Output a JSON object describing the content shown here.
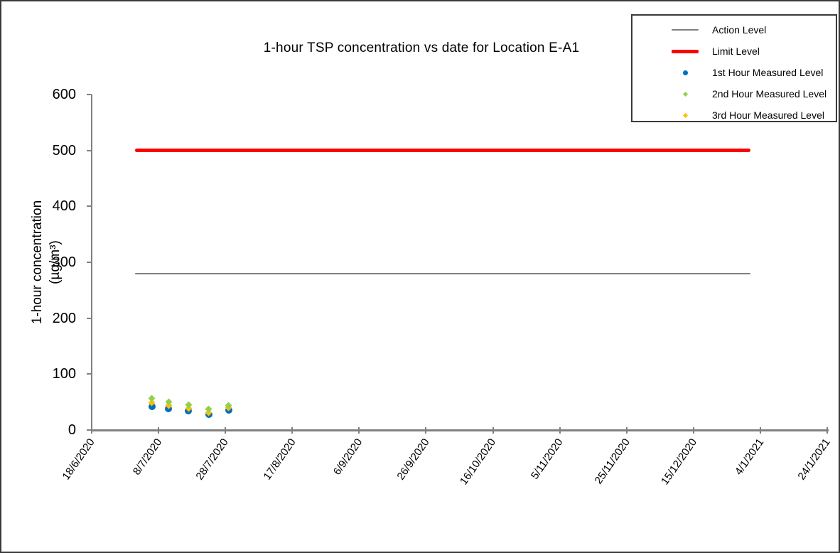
{
  "chart_data": {
    "type": "scatter",
    "title": "1-hour TSP concentration vs date for Location E-A1",
    "ylabel_line1": "1-hour concentration",
    "ylabel_line2": "(µg/m³)",
    "ylim": [
      0,
      600
    ],
    "yticks": [
      0,
      100,
      200,
      300,
      400,
      500,
      600
    ],
    "x_range": [
      "18/6/2020",
      "24/1/2021"
    ],
    "x_tick_labels": [
      "18/6/2020",
      "8/7/2020",
      "28/7/2020",
      "17/8/2020",
      "6/9/2020",
      "26/9/2020",
      "16/10/2020",
      "5/11/2020",
      "25/11/2020",
      "15/12/2020",
      "4/1/2021",
      "24/1/2021"
    ],
    "grid": "off",
    "legend_position": "top-right",
    "ref_lines": [
      {
        "name": "Action Level",
        "value": 280,
        "start": "1/7/2020",
        "end": "1/1/2021",
        "color": "#808080",
        "thickness": 2
      },
      {
        "name": "Limit Level",
        "value": 500,
        "start": "1/7/2020",
        "end": "1/1/2021",
        "color": "#FF0000",
        "thickness": 5
      }
    ],
    "series": [
      {
        "name": "1st Hour Measured Level",
        "marker": "circle",
        "color": "#0070C0",
        "points": [
          {
            "date": "6/7/2020",
            "value": 42
          },
          {
            "date": "11/7/2020",
            "value": 38
          },
          {
            "date": "17/7/2020",
            "value": 34
          },
          {
            "date": "23/7/2020",
            "value": 28
          },
          {
            "date": "29/7/2020",
            "value": 35
          }
        ]
      },
      {
        "name": "2nd Hour Measured Level",
        "marker": "diamond",
        "color": "#92D050",
        "points": [
          {
            "date": "6/7/2020",
            "value": 56
          },
          {
            "date": "11/7/2020",
            "value": 50
          },
          {
            "date": "17/7/2020",
            "value": 45
          },
          {
            "date": "23/7/2020",
            "value": 37
          },
          {
            "date": "29/7/2020",
            "value": 44
          }
        ]
      },
      {
        "name": "3rd Hour Measured Level",
        "marker": "diamond",
        "color": "#FFC000",
        "points": [
          {
            "date": "6/7/2020",
            "value": 49
          },
          {
            "date": "11/7/2020",
            "value": 44
          },
          {
            "date": "17/7/2020",
            "value": 39
          },
          {
            "date": "23/7/2020",
            "value": 31
          },
          {
            "date": "29/7/2020",
            "value": 40
          }
        ]
      }
    ]
  }
}
